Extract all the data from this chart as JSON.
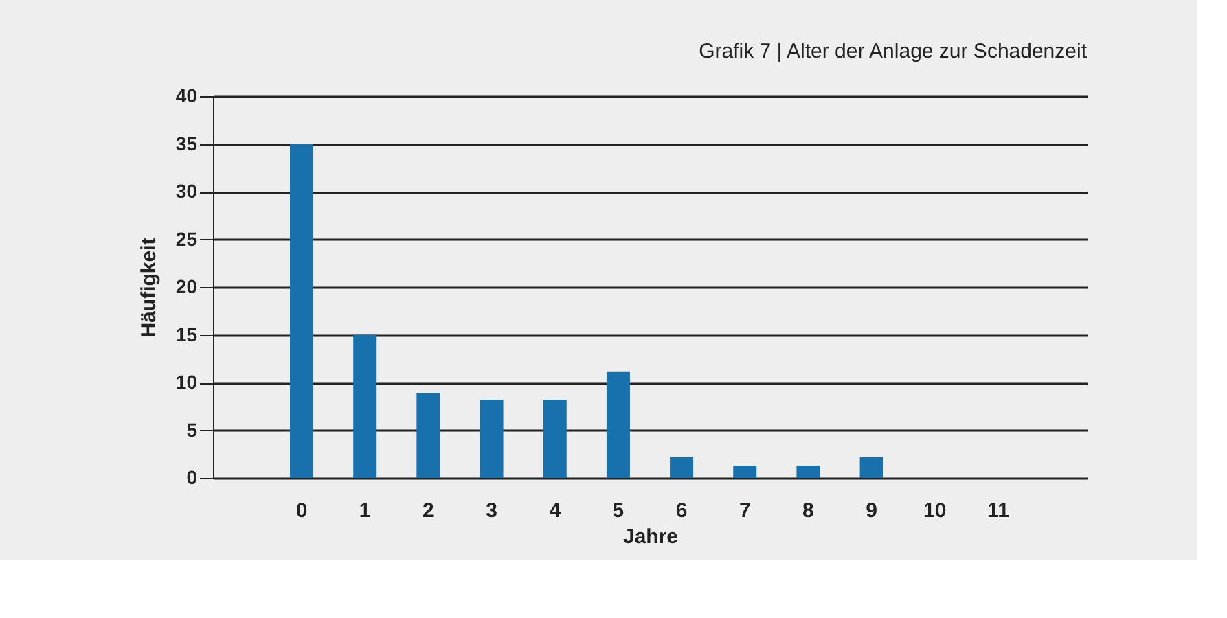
{
  "chart_data": {
    "type": "bar",
    "title": "Grafik 7 | Alter der Anlage zur Schadenzeit",
    "xlabel": "Jahre",
    "ylabel": "Häufigkeit",
    "categories": [
      "0",
      "1",
      "2",
      "3",
      "4",
      "5",
      "6",
      "7",
      "8",
      "9",
      "10",
      "11"
    ],
    "values": [
      35,
      15,
      8.9,
      8.2,
      8.2,
      11.1,
      2.2,
      1.3,
      1.3,
      2.2,
      0,
      0
    ],
    "color": "#1870ad",
    "ylim": [
      0,
      40
    ],
    "yticks": [
      0,
      5,
      10,
      15,
      20,
      25,
      30,
      35,
      40
    ],
    "grid": "y"
  }
}
